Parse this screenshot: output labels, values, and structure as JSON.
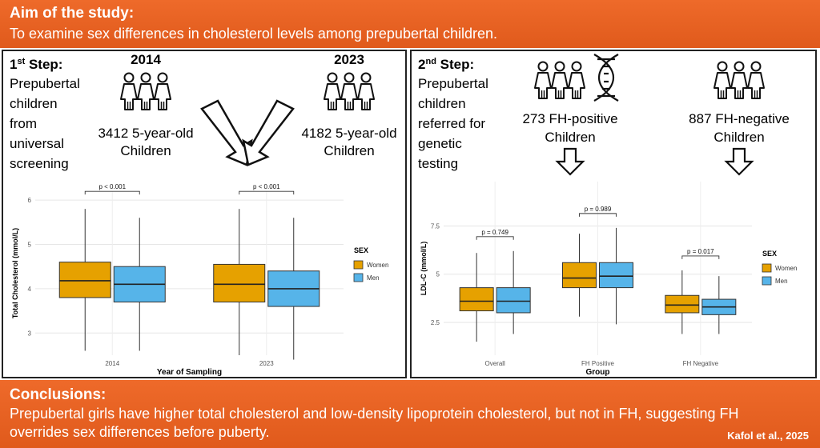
{
  "aim": {
    "title": "Aim of the study:",
    "text": "To examine sex differences in cholesterol levels among prepubertal children."
  },
  "conclusions": {
    "title": "Conclusions:",
    "line1": "Prepubertal girls have higher total cholesterol and low-density lipoprotein cholesterol, but not in FH, suggesting FH",
    "line2": "overrides sex differences before puberty.",
    "credit": "Kafol et al., 2025"
  },
  "step1": {
    "num": "1",
    "sup": "st",
    "label": " Step:",
    "desc": [
      "Prepubertal",
      "children",
      "from",
      "universal",
      "screening"
    ],
    "year_a": "2014",
    "year_b": "2023",
    "count_a": "3412 5-year-old",
    "count_b": "4182 5-year-old",
    "children": "Children"
  },
  "step2": {
    "num": "2",
    "sup": "nd",
    "label": " Step:",
    "desc": [
      "Prepubertal",
      "children",
      "referred for",
      "genetic",
      "testing"
    ],
    "pos_count": "273 FH-positive",
    "neg_count": "887 FH-negative",
    "children": "Children"
  },
  "colors": {
    "women": "#e6a100",
    "men": "#56b4e9",
    "banner": "#e8631f"
  },
  "chart_data": [
    {
      "type": "box",
      "xlabel": "Year of Sampling",
      "ylabel": "Total Cholesterol (mmol/L)",
      "ylim": [
        2.5,
        6.2
      ],
      "yticks": [
        3,
        4,
        5,
        6
      ],
      "grid": true,
      "legend": {
        "title": "SEX",
        "position": "right",
        "entries": [
          "Women",
          "Men"
        ]
      },
      "categories": [
        "2014",
        "2023"
      ],
      "series": [
        {
          "name": "Women",
          "color": "#e6a100",
          "boxes": [
            {
              "min": 2.6,
              "q1": 3.8,
              "median": 4.18,
              "q3": 4.6,
              "max": 5.8
            },
            {
              "min": 2.5,
              "q1": 3.7,
              "median": 4.1,
              "q3": 4.55,
              "max": 5.8
            }
          ]
        },
        {
          "name": "Men",
          "color": "#56b4e9",
          "boxes": [
            {
              "min": 2.6,
              "q1": 3.7,
              "median": 4.1,
              "q3": 4.5,
              "max": 5.6
            },
            {
              "min": 2.4,
              "q1": 3.6,
              "median": 4.0,
              "q3": 4.4,
              "max": 5.6
            }
          ]
        }
      ],
      "annotations": [
        "p < 0.001",
        "p < 0.001"
      ]
    },
    {
      "type": "box",
      "xlabel": "Group",
      "ylabel": "LDL-C (mmol/L)",
      "ylim": [
        0.8,
        9.8
      ],
      "yticks": [
        2.5,
        5.0,
        7.5
      ],
      "grid": true,
      "legend": {
        "title": "SEX",
        "position": "right",
        "entries": [
          "Women",
          "Men"
        ]
      },
      "categories": [
        "Overall",
        "FH Positive",
        "FH Negative"
      ],
      "series": [
        {
          "name": "Women",
          "color": "#e6a100",
          "boxes": [
            {
              "min": 1.5,
              "q1": 3.1,
              "median": 3.6,
              "q3": 4.3,
              "max": 6.1
            },
            {
              "min": 2.8,
              "q1": 4.3,
              "median": 4.8,
              "q3": 5.6,
              "max": 7.1
            },
            {
              "min": 1.9,
              "q1": 3.0,
              "median": 3.4,
              "q3": 3.9,
              "max": 5.2
            }
          ]
        },
        {
          "name": "Men",
          "color": "#56b4e9",
          "boxes": [
            {
              "min": 1.9,
              "q1": 3.0,
              "median": 3.6,
              "q3": 4.3,
              "max": 6.2
            },
            {
              "min": 2.4,
              "q1": 4.3,
              "median": 4.9,
              "q3": 5.6,
              "max": 7.4
            },
            {
              "min": 1.9,
              "q1": 2.9,
              "median": 3.3,
              "q3": 3.7,
              "max": 4.9
            }
          ]
        }
      ],
      "annotations": [
        "p = 0.749",
        "p = 0.989",
        "p = 0.017"
      ]
    }
  ]
}
